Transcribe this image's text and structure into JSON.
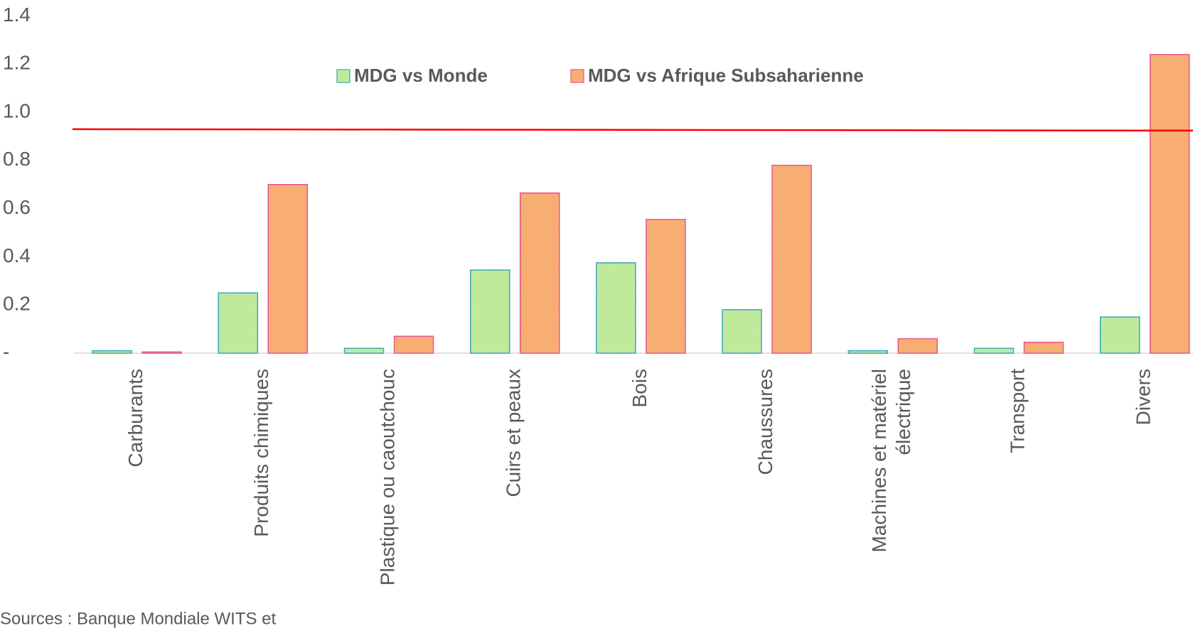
{
  "chart_data": {
    "type": "bar",
    "categories": [
      "Carburants",
      "Produits chimiques",
      "Plastique ou caoutchouc",
      "Cuirs et peaux",
      "Bois",
      "Chaussures",
      "Machines et matériel électrique",
      "Transport",
      "Divers"
    ],
    "series": [
      {
        "name": "MDG vs Monde",
        "color": "#b7e68c",
        "stroke": "#2aa3b3",
        "values": [
          0.01,
          0.25,
          0.02,
          0.345,
          0.375,
          0.18,
          0.01,
          0.02,
          0.15
        ]
      },
      {
        "name": "MDG vs Afrique Subsaharienne",
        "color": "#f6a25e",
        "stroke": "#e8488a",
        "values": [
          0.005,
          0.7,
          0.07,
          0.665,
          0.555,
          0.78,
          0.06,
          0.045,
          1.24
        ]
      }
    ],
    "ylim": [
      0,
      1.4
    ],
    "yticks": [
      {
        "value": 0,
        "label": "-"
      },
      0.2,
      0.4,
      0.6,
      0.8,
      {
        "value": 1,
        "label": "1.0"
      },
      1.2,
      1.4
    ],
    "reference_line": {
      "value": 0.93,
      "color": "#ff0000"
    },
    "grid": false,
    "legend": "top",
    "source": "Sources : Banque Mondiale WITS et"
  }
}
